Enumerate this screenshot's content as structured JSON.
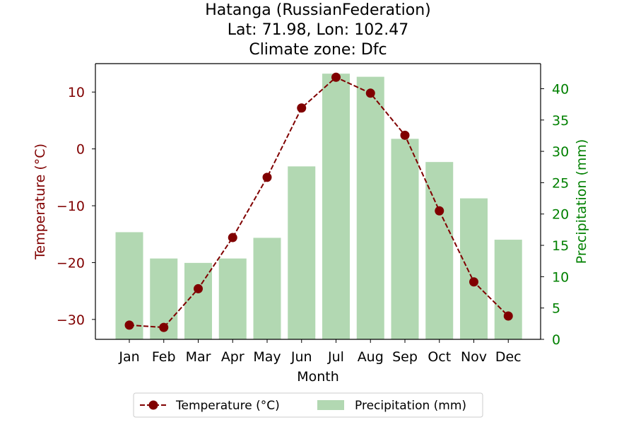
{
  "chart_data": {
    "type": "bar+line",
    "title_lines": [
      "Hatanga (RussianFederation)",
      "Lat: 71.98, Lon: 102.47",
      "Climate zone: Dfc"
    ],
    "categories": [
      "Jan",
      "Feb",
      "Mar",
      "Apr",
      "May",
      "Jun",
      "Jul",
      "Aug",
      "Sep",
      "Oct",
      "Nov",
      "Dec"
    ],
    "xlabel": "Month",
    "temperature": {
      "name": "Temperature (°C)",
      "axis_label": "Temperature (°C)",
      "values": [
        -31.0,
        -31.4,
        -24.6,
        -15.6,
        -5.0,
        7.2,
        12.6,
        9.8,
        2.4,
        -10.9,
        -23.4,
        -29.4
      ],
      "ylim": [
        -33.5,
        15
      ],
      "ticks": [
        10,
        0,
        -10,
        -20,
        -30
      ],
      "tick_labels": [
        "10",
        "0",
        "−10",
        "−20",
        "−30"
      ],
      "color": "#800000",
      "line_style": "dashed",
      "marker": "circle"
    },
    "precipitation": {
      "name": "Precipitation (mm)",
      "axis_label": "Precipitation (mm)",
      "values": [
        17.1,
        12.9,
        12.2,
        12.9,
        16.2,
        27.6,
        42.4,
        41.9,
        32.0,
        28.3,
        22.5,
        15.9
      ],
      "ylim": [
        0,
        44
      ],
      "ticks": [
        0,
        5,
        10,
        15,
        20,
        25,
        30,
        35,
        40
      ],
      "tick_labels": [
        "0",
        "5",
        "10",
        "15",
        "20",
        "25",
        "30",
        "35",
        "40"
      ],
      "color": "#b2d8b2",
      "axis_color": "#008000"
    },
    "legend": {
      "placement": "bottom-center",
      "entries": [
        "Temperature (°C)",
        "Precipitation (mm)"
      ]
    },
    "grid": false
  }
}
